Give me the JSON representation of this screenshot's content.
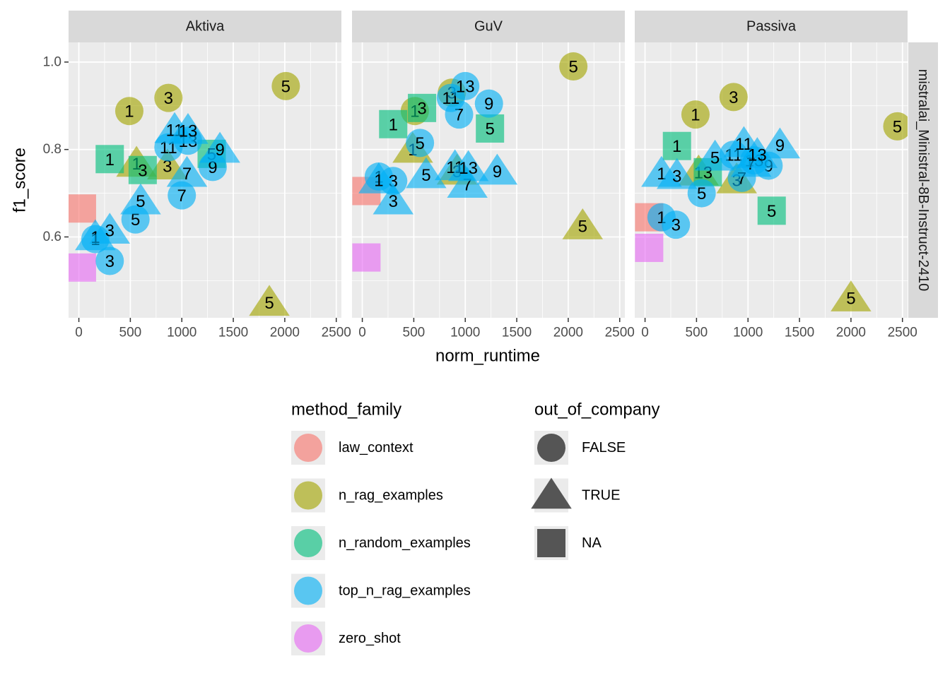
{
  "chart_data": {
    "type": "scatter",
    "xlabel": "norm_runtime",
    "ylabel": "f1_score",
    "xlim": [
      -100,
      2550
    ],
    "ylim": [
      0.415,
      1.045
    ],
    "x_ticks": [
      0,
      500,
      1000,
      1500,
      2000,
      2500
    ],
    "x_tick_labels": [
      "0",
      "500",
      "1000",
      "1500",
      "2000",
      "2500"
    ],
    "y_ticks": [
      0.6,
      0.8,
      1.0
    ],
    "y_tick_labels": [
      "0.6",
      "0.8",
      "1.0"
    ],
    "grid": true,
    "facet_row_label": "mistralai_Ministral-8B-Instruct-2410",
    "legend_position": "bottom",
    "color_legend": {
      "title": "method_family",
      "entries": [
        {
          "name": "law_context",
          "color": "#F8766D"
        },
        {
          "name": "n_rag_examples",
          "color": "#A3A500"
        },
        {
          "name": "n_random_examples",
          "color": "#00BF7D"
        },
        {
          "name": "top_n_rag_examples",
          "color": "#00B0F6"
        },
        {
          "name": "zero_shot",
          "color": "#E76BF3"
        }
      ]
    },
    "shape_legend": {
      "title": "out_of_company",
      "entries": [
        {
          "name": "FALSE",
          "shape": "circle"
        },
        {
          "name": "TRUE",
          "shape": "triangle"
        },
        {
          "name": "NA",
          "shape": "square"
        }
      ]
    },
    "facets": [
      {
        "name": "Aktiva",
        "points": [
          {
            "x": 30,
            "y": 0.665,
            "family": "law_context",
            "shape": "square",
            "label": ""
          },
          {
            "x": 30,
            "y": 0.53,
            "family": "zero_shot",
            "shape": "square",
            "label": ""
          },
          {
            "x": 490,
            "y": 0.888,
            "family": "n_rag_examples",
            "shape": "circle",
            "label": "1"
          },
          {
            "x": 870,
            "y": 0.918,
            "family": "n_rag_examples",
            "shape": "circle",
            "label": "3"
          },
          {
            "x": 2010,
            "y": 0.945,
            "family": "n_rag_examples",
            "shape": "circle",
            "label": "5"
          },
          {
            "x": 560,
            "y": 0.768,
            "family": "n_rag_examples",
            "shape": "triangle",
            "label": "1"
          },
          {
            "x": 860,
            "y": 0.762,
            "family": "n_rag_examples",
            "shape": "triangle",
            "label": "3"
          },
          {
            "x": 1850,
            "y": 0.45,
            "family": "n_rag_examples",
            "shape": "triangle",
            "label": "5"
          },
          {
            "x": 300,
            "y": 0.778,
            "family": "n_random_examples",
            "shape": "square",
            "label": "1"
          },
          {
            "x": 620,
            "y": 0.753,
            "family": "n_random_examples",
            "shape": "square",
            "label": "3"
          },
          {
            "x": 1290,
            "y": 0.79,
            "family": "n_random_examples",
            "shape": "square",
            "label": "5"
          },
          {
            "x": 160,
            "y": 0.595,
            "family": "top_n_rag_examples",
            "shape": "circle",
            "label": "1"
          },
          {
            "x": 300,
            "y": 0.545,
            "family": "top_n_rag_examples",
            "shape": "circle",
            "label": "3"
          },
          {
            "x": 550,
            "y": 0.64,
            "family": "top_n_rag_examples",
            "shape": "circle",
            "label": "5"
          },
          {
            "x": 1000,
            "y": 0.695,
            "family": "top_n_rag_examples",
            "shape": "circle",
            "label": "7"
          },
          {
            "x": 1300,
            "y": 0.76,
            "family": "top_n_rag_examples",
            "shape": "circle",
            "label": "9"
          },
          {
            "x": 870,
            "y": 0.805,
            "family": "top_n_rag_examples",
            "shape": "circle",
            "label": "11"
          },
          {
            "x": 1060,
            "y": 0.82,
            "family": "top_n_rag_examples",
            "shape": "circle",
            "label": "13"
          },
          {
            "x": 160,
            "y": 0.6,
            "family": "top_n_rag_examples",
            "shape": "triangle",
            "label": "1"
          },
          {
            "x": 300,
            "y": 0.615,
            "family": "top_n_rag_examples",
            "shape": "triangle",
            "label": "3"
          },
          {
            "x": 600,
            "y": 0.682,
            "family": "top_n_rag_examples",
            "shape": "triangle",
            "label": "5"
          },
          {
            "x": 1050,
            "y": 0.745,
            "family": "top_n_rag_examples",
            "shape": "triangle",
            "label": "7"
          },
          {
            "x": 1370,
            "y": 0.8,
            "family": "top_n_rag_examples",
            "shape": "triangle",
            "label": "9"
          },
          {
            "x": 930,
            "y": 0.845,
            "family": "top_n_rag_examples",
            "shape": "triangle",
            "label": "11"
          },
          {
            "x": 1060,
            "y": 0.843,
            "family": "top_n_rag_examples",
            "shape": "triangle",
            "label": "13"
          }
        ]
      },
      {
        "name": "GuV",
        "points": [
          {
            "x": 40,
            "y": 0.705,
            "family": "law_context",
            "shape": "square",
            "label": ""
          },
          {
            "x": 40,
            "y": 0.553,
            "family": "zero_shot",
            "shape": "square",
            "label": ""
          },
          {
            "x": 510,
            "y": 0.888,
            "family": "n_rag_examples",
            "shape": "circle",
            "label": "1"
          },
          {
            "x": 870,
            "y": 0.93,
            "family": "n_rag_examples",
            "shape": "circle",
            "label": "3"
          },
          {
            "x": 2050,
            "y": 0.99,
            "family": "n_rag_examples",
            "shape": "circle",
            "label": "5"
          },
          {
            "x": 490,
            "y": 0.8,
            "family": "n_rag_examples",
            "shape": "triangle",
            "label": "1"
          },
          {
            "x": 920,
            "y": 0.75,
            "family": "n_rag_examples",
            "shape": "triangle",
            "label": "3"
          },
          {
            "x": 2140,
            "y": 0.625,
            "family": "n_rag_examples",
            "shape": "triangle",
            "label": "5"
          },
          {
            "x": 300,
            "y": 0.858,
            "family": "n_random_examples",
            "shape": "square",
            "label": "1"
          },
          {
            "x": 580,
            "y": 0.895,
            "family": "n_random_examples",
            "shape": "square",
            "label": "3"
          },
          {
            "x": 1240,
            "y": 0.848,
            "family": "n_random_examples",
            "shape": "square",
            "label": "5"
          },
          {
            "x": 160,
            "y": 0.738,
            "family": "top_n_rag_examples",
            "shape": "circle",
            "label": "1"
          },
          {
            "x": 300,
            "y": 0.728,
            "family": "top_n_rag_examples",
            "shape": "circle",
            "label": "3"
          },
          {
            "x": 560,
            "y": 0.815,
            "family": "top_n_rag_examples",
            "shape": "circle",
            "label": "5"
          },
          {
            "x": 940,
            "y": 0.88,
            "family": "top_n_rag_examples",
            "shape": "circle",
            "label": "7"
          },
          {
            "x": 1230,
            "y": 0.905,
            "family": "top_n_rag_examples",
            "shape": "circle",
            "label": "9"
          },
          {
            "x": 860,
            "y": 0.918,
            "family": "top_n_rag_examples",
            "shape": "circle",
            "label": "11"
          },
          {
            "x": 1000,
            "y": 0.945,
            "family": "top_n_rag_examples",
            "shape": "circle",
            "label": "13"
          },
          {
            "x": 160,
            "y": 0.73,
            "family": "top_n_rag_examples",
            "shape": "triangle",
            "label": "1"
          },
          {
            "x": 300,
            "y": 0.682,
            "family": "top_n_rag_examples",
            "shape": "triangle",
            "label": "3"
          },
          {
            "x": 620,
            "y": 0.742,
            "family": "top_n_rag_examples",
            "shape": "triangle",
            "label": "5"
          },
          {
            "x": 1020,
            "y": 0.72,
            "family": "top_n_rag_examples",
            "shape": "triangle",
            "label": "7"
          },
          {
            "x": 1310,
            "y": 0.75,
            "family": "top_n_rag_examples",
            "shape": "triangle",
            "label": "9"
          },
          {
            "x": 900,
            "y": 0.76,
            "family": "top_n_rag_examples",
            "shape": "triangle",
            "label": "11"
          },
          {
            "x": 1030,
            "y": 0.758,
            "family": "top_n_rag_examples",
            "shape": "triangle",
            "label": "13"
          }
        ]
      },
      {
        "name": "Passiva",
        "points": [
          {
            "x": 40,
            "y": 0.645,
            "family": "law_context",
            "shape": "square",
            "label": ""
          },
          {
            "x": 40,
            "y": 0.575,
            "family": "zero_shot",
            "shape": "square",
            "label": ""
          },
          {
            "x": 490,
            "y": 0.88,
            "family": "n_rag_examples",
            "shape": "circle",
            "label": "1"
          },
          {
            "x": 860,
            "y": 0.92,
            "family": "n_rag_examples",
            "shape": "circle",
            "label": "3"
          },
          {
            "x": 2450,
            "y": 0.853,
            "family": "n_rag_examples",
            "shape": "circle",
            "label": "5"
          },
          {
            "x": 520,
            "y": 0.748,
            "family": "n_rag_examples",
            "shape": "triangle",
            "label": "1"
          },
          {
            "x": 890,
            "y": 0.73,
            "family": "n_rag_examples",
            "shape": "triangle",
            "label": "3"
          },
          {
            "x": 2000,
            "y": 0.46,
            "family": "n_rag_examples",
            "shape": "triangle",
            "label": "5"
          },
          {
            "x": 310,
            "y": 0.808,
            "family": "n_random_examples",
            "shape": "square",
            "label": "1"
          },
          {
            "x": 610,
            "y": 0.748,
            "family": "n_random_examples",
            "shape": "square",
            "label": "3"
          },
          {
            "x": 1230,
            "y": 0.66,
            "family": "n_random_examples",
            "shape": "square",
            "label": "5"
          },
          {
            "x": 160,
            "y": 0.645,
            "family": "top_n_rag_examples",
            "shape": "circle",
            "label": "1"
          },
          {
            "x": 300,
            "y": 0.628,
            "family": "top_n_rag_examples",
            "shape": "circle",
            "label": "3"
          },
          {
            "x": 550,
            "y": 0.7,
            "family": "top_n_rag_examples",
            "shape": "circle",
            "label": "5"
          },
          {
            "x": 940,
            "y": 0.735,
            "family": "top_n_rag_examples",
            "shape": "circle",
            "label": "7"
          },
          {
            "x": 1200,
            "y": 0.763,
            "family": "top_n_rag_examples",
            "shape": "circle",
            "label": "9"
          },
          {
            "x": 860,
            "y": 0.788,
            "family": "top_n_rag_examples",
            "shape": "circle",
            "label": "11"
          },
          {
            "x": 1060,
            "y": 0.775,
            "family": "top_n_rag_examples",
            "shape": "circle",
            "label": "13"
          },
          {
            "x": 160,
            "y": 0.745,
            "family": "top_n_rag_examples",
            "shape": "triangle",
            "label": "1"
          },
          {
            "x": 310,
            "y": 0.74,
            "family": "top_n_rag_examples",
            "shape": "triangle",
            "label": "3"
          },
          {
            "x": 680,
            "y": 0.782,
            "family": "top_n_rag_examples",
            "shape": "triangle",
            "label": "5"
          },
          {
            "x": 1030,
            "y": 0.768,
            "family": "top_n_rag_examples",
            "shape": "triangle",
            "label": "7"
          },
          {
            "x": 1310,
            "y": 0.81,
            "family": "top_n_rag_examples",
            "shape": "triangle",
            "label": "9"
          },
          {
            "x": 960,
            "y": 0.813,
            "family": "top_n_rag_examples",
            "shape": "triangle",
            "label": "11"
          },
          {
            "x": 1090,
            "y": 0.788,
            "family": "top_n_rag_examples",
            "shape": "triangle",
            "label": "13"
          }
        ]
      }
    ]
  }
}
